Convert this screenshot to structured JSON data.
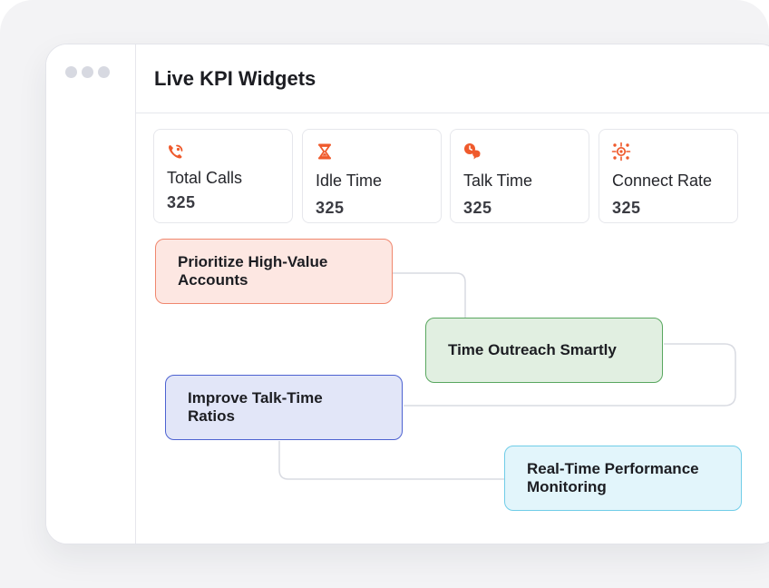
{
  "window": {
    "title": "Live KPI Widgets"
  },
  "kpis": [
    {
      "label": "Total Calls",
      "value": "325",
      "icon": "phone-ringing-icon"
    },
    {
      "label": "Idle Time",
      "value": "325",
      "icon": "hourglass-icon"
    },
    {
      "label": "Talk Time",
      "value": "325",
      "icon": "clock-chat-icon"
    },
    {
      "label": "Connect Rate",
      "value": "325",
      "icon": "network-target-icon"
    }
  ],
  "flow": {
    "nodes": [
      {
        "label": "Prioritize High-Value Accounts",
        "color": "#fde7e2",
        "border": "#f0876e"
      },
      {
        "label": "Time Outreach Smartly",
        "color": "#e1efe1",
        "border": "#59a75f"
      },
      {
        "label": "Improve Talk-Time Ratios",
        "color": "#e2e6f8",
        "border": "#4d62d1"
      },
      {
        "label": "Real-Time Performance Monitoring",
        "color": "#e2f5fb",
        "border": "#70cde8"
      }
    ]
  },
  "colors": {
    "accent": "#ef5a2c",
    "connector": "#d9dbe2"
  }
}
